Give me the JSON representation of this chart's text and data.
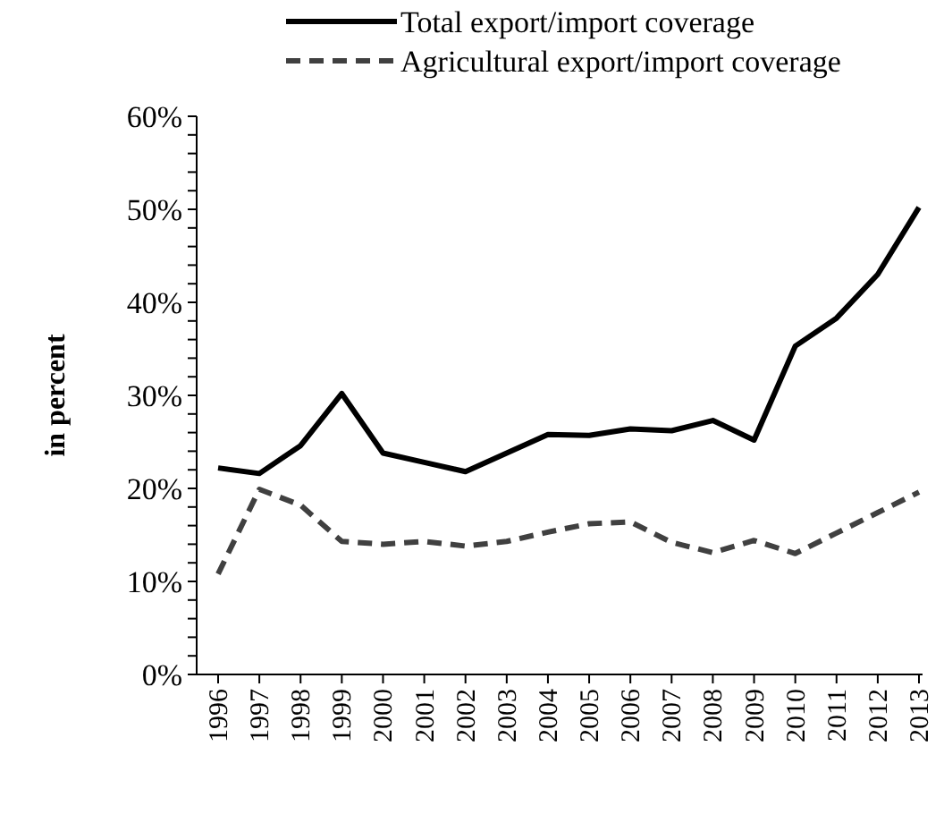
{
  "chart_data": {
    "type": "line",
    "ylabel": "in percent",
    "categories": [
      "1996",
      "1997",
      "1998",
      "1999",
      "2000",
      "2001",
      "2002",
      "2003",
      "2004",
      "2005",
      "2006",
      "2007",
      "2008",
      "2009",
      "2010",
      "2011",
      "2012",
      "2013"
    ],
    "series": [
      {
        "name": "Total export/import coverage",
        "color": "#000000",
        "line_style": "solid",
        "values": [
          22.2,
          21.6,
          24.6,
          30.2,
          23.8,
          22.8,
          21.8,
          23.8,
          25.8,
          25.7,
          26.4,
          26.2,
          27.3,
          25.2,
          35.3,
          38.3,
          43.0,
          50.2
        ]
      },
      {
        "name": "Agricultural export/import coverage",
        "color": "#404040",
        "line_style": "dashed",
        "values": [
          10.8,
          19.9,
          18.2,
          14.3,
          14.0,
          14.3,
          13.8,
          14.3,
          15.3,
          16.2,
          16.4,
          14.2,
          13.1,
          14.4,
          13.0,
          15.2,
          17.4,
          19.6
        ]
      }
    ],
    "ylim": [
      0,
      60
    ],
    "yticks": [
      {
        "value": 0,
        "label": "0%"
      },
      {
        "value": 2,
        "label": null
      },
      {
        "value": 4,
        "label": null
      },
      {
        "value": 6,
        "label": null
      },
      {
        "value": 8,
        "label": null
      },
      {
        "value": 10,
        "label": "10%"
      },
      {
        "value": 12,
        "label": null
      },
      {
        "value": 14,
        "label": null
      },
      {
        "value": 16,
        "label": null
      },
      {
        "value": 18,
        "label": null
      },
      {
        "value": 20,
        "label": "20%"
      },
      {
        "value": 22,
        "label": null
      },
      {
        "value": 24,
        "label": null
      },
      {
        "value": 26,
        "label": null
      },
      {
        "value": 28,
        "label": null
      },
      {
        "value": 30,
        "label": "30%"
      },
      {
        "value": 32,
        "label": null
      },
      {
        "value": 34,
        "label": null
      },
      {
        "value": 36,
        "label": null
      },
      {
        "value": 38,
        "label": null
      },
      {
        "value": 40,
        "label": "40%"
      },
      {
        "value": 42,
        "label": null
      },
      {
        "value": 44,
        "label": null
      },
      {
        "value": 46,
        "label": null
      },
      {
        "value": 48,
        "label": null
      },
      {
        "value": 50,
        "label": "50%"
      },
      {
        "value": 52,
        "label": null
      },
      {
        "value": 54,
        "label": null
      },
      {
        "value": 56,
        "label": null
      },
      {
        "value": 58,
        "label": null
      },
      {
        "value": 60,
        "label": "60%"
      }
    ],
    "grid": false,
    "legend": "top",
    "marker": "none"
  }
}
